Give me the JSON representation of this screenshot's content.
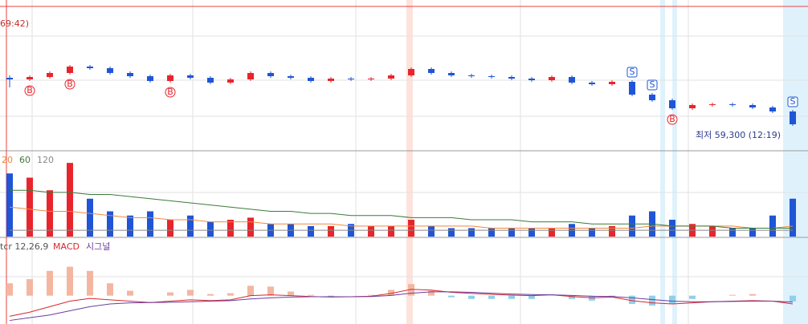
{
  "chart_data": [
    {
      "type": "candlestick",
      "legend_text": "69:42)",
      "annotation": "최저 59,300 (12:19)",
      "ylim": [
        59000,
        60790
      ],
      "open": [
        59900,
        59880,
        59910,
        59960,
        60040,
        60020,
        59960,
        59920,
        59860,
        59930,
        59900,
        59840,
        59880,
        59960,
        59920,
        59900,
        59860,
        59890,
        59880,
        59890,
        59930,
        60010,
        59960,
        59930,
        59920,
        59910,
        59890,
        59870,
        59910,
        59840,
        59820,
        59850,
        59690,
        59620,
        59520,
        59560,
        59570,
        59560,
        59530,
        59480
      ],
      "high": [
        59930,
        59930,
        59980,
        60060,
        60060,
        60040,
        59980,
        59940,
        59950,
        59950,
        59920,
        59900,
        59980,
        59980,
        59940,
        59920,
        59910,
        59910,
        59910,
        59950,
        60030,
        60030,
        59980,
        59950,
        59940,
        59930,
        59910,
        59930,
        59930,
        59860,
        59870,
        59870,
        59710,
        59640,
        59580,
        59590,
        59590,
        59580,
        59550,
        59500
      ],
      "low": [
        59780,
        59860,
        59890,
        59940,
        60000,
        59940,
        59900,
        59840,
        59840,
        59880,
        59820,
        59820,
        59860,
        59900,
        59880,
        59840,
        59840,
        59860,
        59860,
        59870,
        59910,
        59940,
        59910,
        59900,
        59890,
        59870,
        59850,
        59850,
        59820,
        59800,
        59800,
        59670,
        59600,
        59500,
        59500,
        59540,
        59540,
        59510,
        59460,
        59300
      ],
      "close": [
        59880,
        59910,
        59960,
        60040,
        60020,
        59960,
        59920,
        59860,
        59930,
        59900,
        59840,
        59880,
        59960,
        59920,
        59900,
        59860,
        59890,
        59880,
        59890,
        59930,
        60010,
        59960,
        59930,
        59920,
        59910,
        59890,
        59870,
        59910,
        59840,
        59820,
        59850,
        59690,
        59620,
        59520,
        59560,
        59570,
        59560,
        59530,
        59480,
        59320
      ],
      "up_color": "#e8252c",
      "down_color": "#1f55d6",
      "markers": [
        {
          "text": "B",
          "at": 1
        },
        {
          "text": "B",
          "at": 3
        },
        {
          "text": "B",
          "at": 8
        },
        {
          "text": "B",
          "at": 33
        },
        {
          "text": "S",
          "at": 31
        },
        {
          "text": "S",
          "at": 32
        },
        {
          "text": "S",
          "at": 39
        }
      ]
    },
    {
      "type": "volume",
      "values": [
        30,
        28,
        22,
        35,
        18,
        12,
        10,
        12,
        8,
        10,
        7,
        8,
        9,
        6,
        6,
        5,
        5,
        6,
        5,
        5,
        8,
        5,
        4,
        4,
        4,
        4,
        4,
        4,
        6,
        4,
        5,
        10,
        12,
        8,
        6,
        5,
        4,
        4,
        10,
        18
      ],
      "ylim": [
        0,
        40
      ],
      "series": [
        {
          "name": "20",
          "color": "#f0883c",
          "values": [
            14,
            13,
            12,
            12,
            11,
            10,
            9,
            9,
            8,
            8,
            7,
            7,
            7,
            6,
            6,
            6,
            6,
            5,
            5,
            5,
            5,
            5,
            5,
            5,
            4,
            4,
            4,
            4,
            4,
            4,
            4,
            4,
            5,
            5,
            5,
            5,
            5,
            4,
            4,
            5
          ]
        },
        {
          "name": "60",
          "color": "#3c7a3c",
          "values": [
            22,
            22,
            21,
            21,
            20,
            20,
            19,
            18,
            17,
            16,
            15,
            14,
            13,
            12,
            12,
            11,
            11,
            10,
            10,
            10,
            9,
            9,
            9,
            8,
            8,
            8,
            7,
            7,
            7,
            6,
            6,
            6,
            6,
            5,
            5,
            5,
            4,
            4,
            4,
            4
          ]
        },
        {
          "name": "120",
          "color": "#888888",
          "values": [
            3,
            3,
            3,
            3,
            3,
            3,
            3,
            3,
            3,
            3,
            3,
            3,
            3,
            3,
            3,
            3,
            3,
            3,
            3,
            3,
            3,
            3,
            3,
            3,
            3,
            3,
            3,
            3,
            3,
            3,
            3,
            3,
            3,
            3,
            3,
            3,
            3,
            3,
            3,
            3
          ]
        }
      ]
    },
    {
      "type": "macd",
      "legend_text": "tcr 12,26,9",
      "ylim": [
        -10,
        20
      ],
      "series": [
        {
          "name": "MACD",
          "color": "#d8262c",
          "values": [
            -7.5,
            -6,
            -4,
            -2,
            -1,
            -1.5,
            -2,
            -2.5,
            -2,
            -1.5,
            -1.8,
            -1.5,
            0,
            0.3,
            0,
            -0.3,
            -0.5,
            -0.4,
            -0.2,
            0.8,
            2.3,
            2,
            1.2,
            0.8,
            0.5,
            0.2,
            0,
            0.3,
            -0.3,
            -0.8,
            -0.5,
            -1.8,
            -2.6,
            -3,
            -2.6,
            -2.2,
            -2,
            -1.8,
            -2,
            -3
          ]
        },
        {
          "name": "시그널",
          "color": "#6a3ca0",
          "values": [
            -9,
            -8,
            -7,
            -5.5,
            -4,
            -3,
            -2.6,
            -2.5,
            -2.4,
            -2.2,
            -2,
            -1.8,
            -1.2,
            -0.8,
            -0.5,
            -0.4,
            -0.4,
            -0.4,
            -0.3,
            0.1,
            0.9,
            1.4,
            1.4,
            1.2,
            0.9,
            0.6,
            0.4,
            0.3,
            0.1,
            -0.2,
            -0.3,
            -0.8,
            -1.4,
            -2,
            -2.2,
            -2.2,
            -2.1,
            -2,
            -2,
            -2.3
          ]
        }
      ],
      "oscillator": {
        "colors": [
          "#f4b6a0",
          "#8fd0ea"
        ]
      }
    }
  ]
}
